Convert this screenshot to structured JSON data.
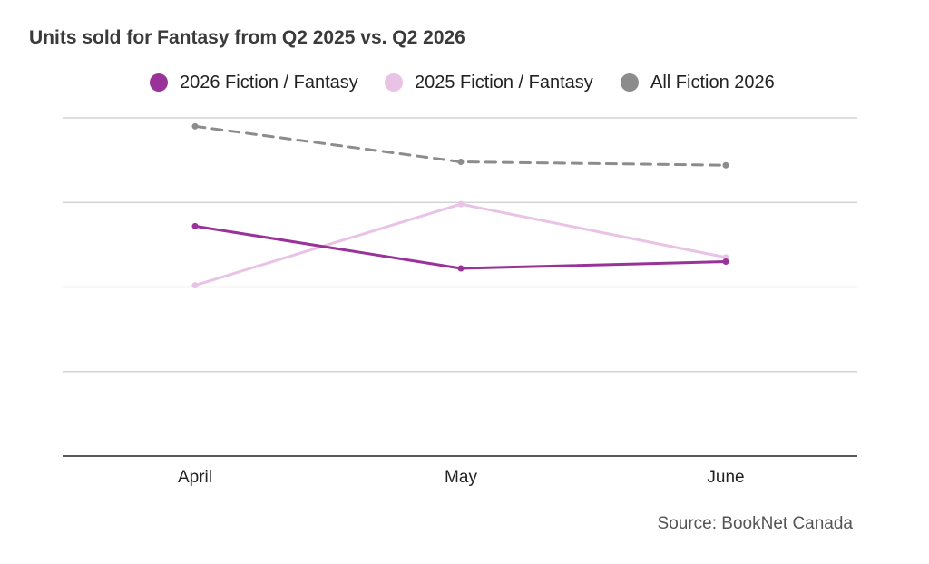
{
  "chart_data": {
    "type": "line",
    "title": "Units sold for Fantasy from Q2 2025 vs. Q2 2026",
    "categories": [
      "April",
      "May",
      "June"
    ],
    "ylim": [
      0,
      4
    ],
    "grid": true,
    "legend_position": "top",
    "source": "Source: BookNet Canada",
    "series": [
      {
        "name": "2026 Fiction / Fantasy",
        "color": "#993399",
        "style": "solid",
        "values": [
          2.72,
          2.22,
          2.3
        ]
      },
      {
        "name": "2025 Fiction / Fantasy",
        "color": "#e8c3e6",
        "style": "solid",
        "values": [
          2.02,
          2.98,
          2.35
        ]
      },
      {
        "name": "All Fiction 2026",
        "color": "#8c8c8c",
        "style": "dashed",
        "values": [
          3.9,
          3.48,
          3.44
        ]
      }
    ]
  }
}
